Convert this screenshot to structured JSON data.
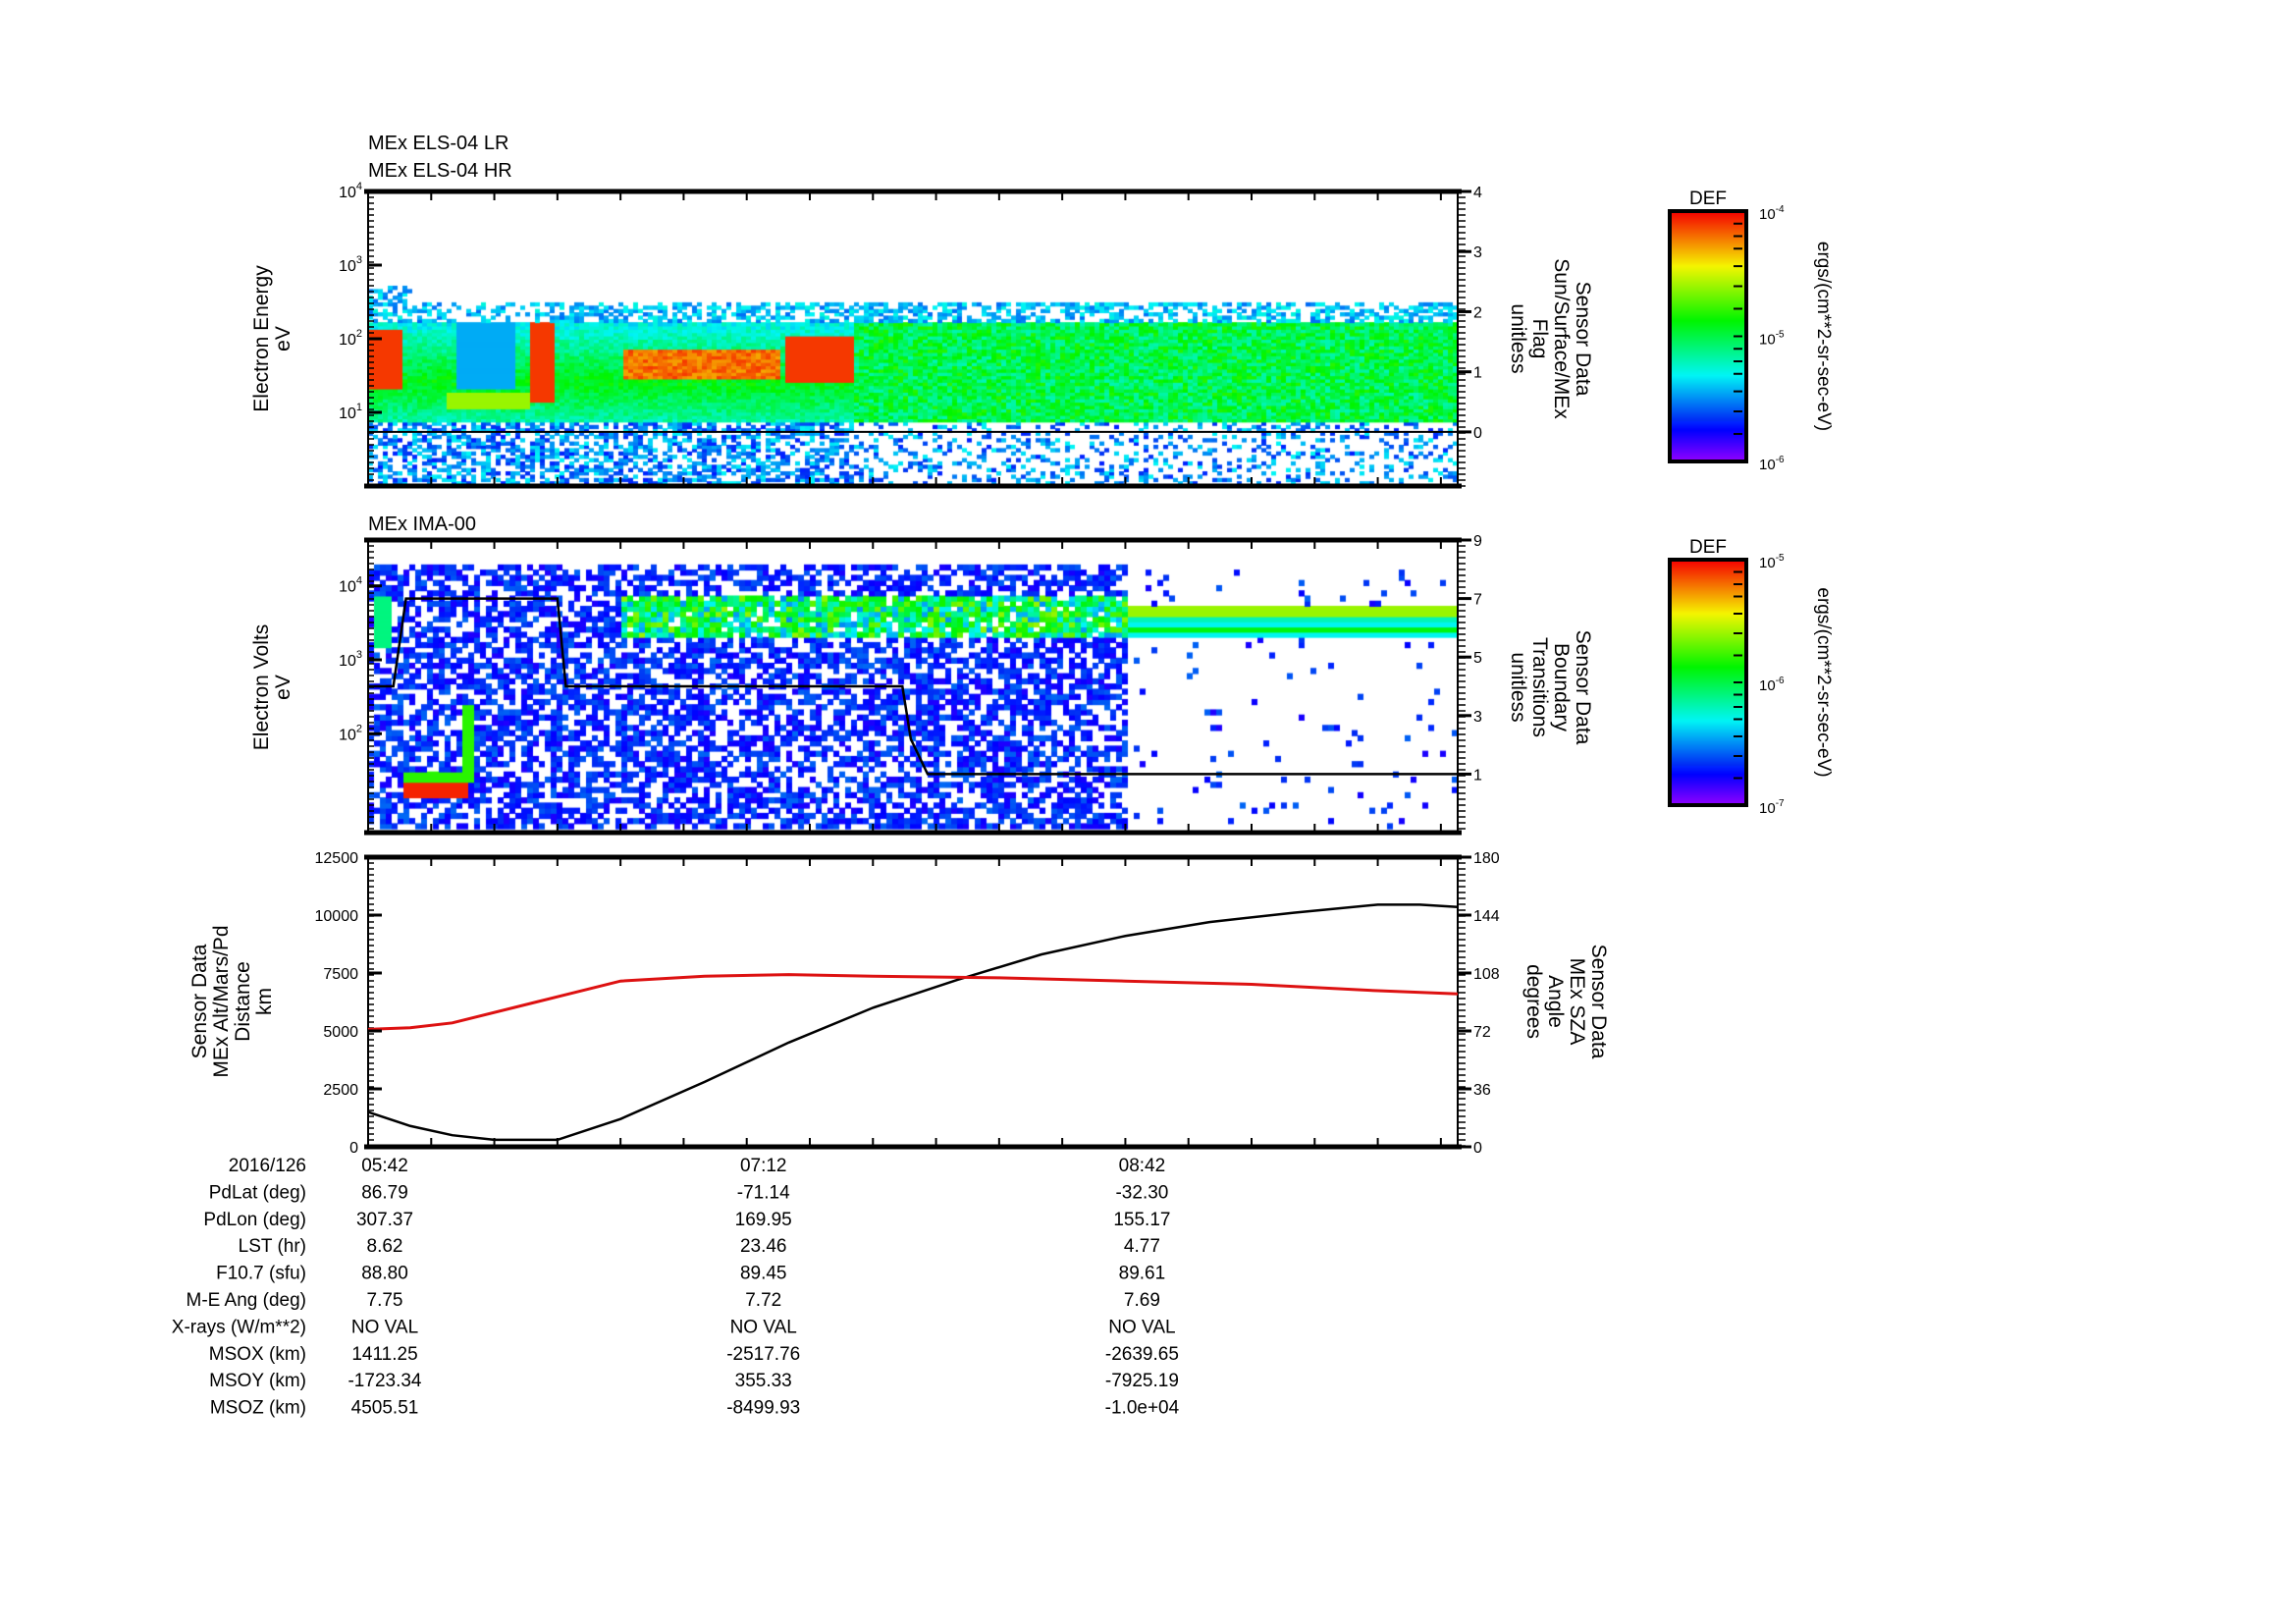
{
  "chart_data": [
    {
      "type": "heatmap",
      "titles": [
        "MEx ELS-04 LR",
        "MEx ELS-04 HR"
      ],
      "ylabel": [
        "Electron Energy",
        "eV"
      ],
      "yscale": "log",
      "ylim": [
        1,
        10000
      ],
      "yticks": [
        {
          "v": 1,
          "label": "10",
          "exp": "1"
        },
        {
          "v": 2,
          "label": "10",
          "exp": "2"
        },
        {
          "v": 3,
          "label": "10",
          "exp": "3"
        },
        {
          "v": 4,
          "label": "10",
          "exp": "4"
        }
      ],
      "y2label": [
        "Sensor Data",
        "Sun/Surface/MEx",
        "Flag",
        "unitless"
      ],
      "y2lim": [
        -0.9,
        4
      ],
      "y2ticks": [
        "0",
        "1",
        "2",
        "3",
        "4"
      ],
      "y2_line": {
        "name": "Sun/Surface/MEx Flag",
        "t": [
          0,
          259
        ],
        "v": [
          0,
          0
        ]
      },
      "colorbar": {
        "label": "DEF",
        "units": "ergs/(cm**2-sr-sec-eV)",
        "ticks": [
          {
            "label": "10",
            "exp": "-4"
          },
          {
            "label": "10",
            "exp": "-5"
          },
          {
            "label": "10",
            "exp": "-6"
          }
        ]
      }
    },
    {
      "type": "heatmap",
      "titles": [
        "MEx IMA-00"
      ],
      "ylabel": [
        "Electron Volts",
        "eV"
      ],
      "yscale": "log",
      "ylim": [
        4.6,
        41700
      ],
      "yticks": [
        {
          "v": 2,
          "label": "10",
          "exp": "2"
        },
        {
          "v": 3,
          "label": "10",
          "exp": "3"
        },
        {
          "v": 4,
          "label": "10",
          "exp": "4"
        }
      ],
      "y2label": [
        "Sensor Data",
        "Boundary",
        "Transitions",
        "unitless"
      ],
      "y2lim": [
        -1,
        9
      ],
      "y2ticks": [
        "1",
        "3",
        "5",
        "7",
        "9"
      ],
      "y2_line": {
        "name": "Boundary Transitions",
        "t": [
          0,
          6,
          9,
          45,
          47,
          127,
          129,
          133,
          259
        ],
        "v": [
          4,
          4,
          7,
          7,
          4,
          4,
          2.2,
          1,
          1
        ]
      },
      "colorbar": {
        "label": "DEF",
        "units": "ergs/(cm**2-sr-sec-eV)",
        "ticks": [
          {
            "label": "10",
            "exp": "-5"
          },
          {
            "label": "10",
            "exp": "-6"
          },
          {
            "label": "10",
            "exp": "-7"
          }
        ]
      }
    },
    {
      "type": "line",
      "ylabel": [
        "Sensor Data",
        "MEx Alt/Mars/Pd",
        "Distance",
        "km"
      ],
      "ylim": [
        0,
        12500
      ],
      "yticks": [
        "0",
        "2500",
        "5000",
        "7500",
        "10000",
        "12500"
      ],
      "y2label": [
        "Sensor Data",
        "MEx SZA",
        "Angle",
        "degrees"
      ],
      "y2lim": [
        0,
        180
      ],
      "y2ticks": [
        "0",
        "36",
        "72",
        "108",
        "144",
        "180"
      ],
      "series": [
        {
          "name": "MEx Alt/Mars/Pd Distance (km)",
          "color": "#000000",
          "t_minutes": [
            0,
            10,
            20,
            30,
            45,
            60,
            80,
            100,
            120,
            140,
            160,
            180,
            200,
            220,
            240,
            250,
            259
          ],
          "values": [
            1500,
            900,
            500,
            300,
            300,
            1200,
            2800,
            4500,
            6000,
            7200,
            8300,
            9100,
            9700,
            10100,
            10450,
            10450,
            10350
          ]
        },
        {
          "name": "MEx SZA Angle (degrees)",
          "color": "#dd1111",
          "t_minutes": [
            0,
            10,
            20,
            40,
            60,
            80,
            100,
            120,
            150,
            180,
            210,
            240,
            259
          ],
          "values": [
            73,
            74,
            77,
            90,
            103,
            106,
            107,
            106,
            105,
            103,
            101,
            97,
            95
          ]
        }
      ]
    }
  ],
  "time_axis": {
    "start": "05:42",
    "span_minutes": 259,
    "minor_tick_minutes": 15
  },
  "ephemeris": {
    "header_label": "2016/126",
    "times": [
      "05:42",
      "07:12",
      "08:42"
    ],
    "times_minutes": [
      0,
      90,
      180
    ],
    "rows": [
      {
        "label": "PdLat (deg)",
        "values": [
          "86.79",
          "-71.14",
          "-32.30"
        ]
      },
      {
        "label": "PdLon (deg)",
        "values": [
          "307.37",
          "169.95",
          "155.17"
        ]
      },
      {
        "label": "LST (hr)",
        "values": [
          "8.62",
          "23.46",
          "4.77"
        ]
      },
      {
        "label": "F10.7 (sfu)",
        "values": [
          "88.80",
          "89.45",
          "89.61"
        ]
      },
      {
        "label": "M-E Ang (deg)",
        "values": [
          "7.75",
          "7.72",
          "7.69"
        ]
      },
      {
        "label": "X-rays (W/m**2)",
        "values": [
          "NO VAL",
          "NO VAL",
          "NO VAL"
        ]
      },
      {
        "label": "MSOX (km)",
        "values": [
          "1411.25",
          "-2517.76",
          "-2639.65"
        ]
      },
      {
        "label": "MSOY (km)",
        "values": [
          "-1723.34",
          "355.33",
          "-7925.19"
        ]
      },
      {
        "label": "MSOZ (km)",
        "values": [
          "4505.51",
          "-8499.93",
          "-1.0e+04"
        ]
      }
    ]
  }
}
